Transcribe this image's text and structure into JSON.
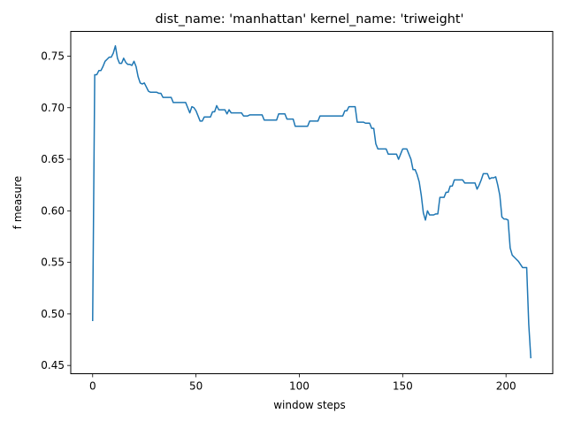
{
  "chart_data": {
    "type": "line",
    "title": "dist_name: 'manhattan' kernel_name: 'triweight'",
    "xlabel": "window steps",
    "ylabel": "f measure",
    "xlim": [
      -10.6,
      222.6
    ],
    "ylim": [
      0.442,
      0.774
    ],
    "x_ticks": [
      0,
      50,
      100,
      150,
      200
    ],
    "y_ticks": [
      0.45,
      0.5,
      0.55,
      0.6,
      0.65,
      0.7,
      0.75
    ],
    "grid": false,
    "legend": "none",
    "line_color": "#1f77b4",
    "series": [
      {
        "points": [
          [
            0,
            0.493
          ],
          [
            1,
            0.732
          ],
          [
            2,
            0.732
          ],
          [
            3,
            0.736
          ],
          [
            4,
            0.736
          ],
          [
            5,
            0.74
          ],
          [
            6,
            0.745
          ],
          [
            7,
            0.747
          ],
          [
            8,
            0.749
          ],
          [
            9,
            0.749
          ],
          [
            10,
            0.753
          ],
          [
            11,
            0.76
          ],
          [
            12,
            0.748
          ],
          [
            13,
            0.743
          ],
          [
            14,
            0.743
          ],
          [
            15,
            0.748
          ],
          [
            16,
            0.744
          ],
          [
            17,
            0.742
          ],
          [
            18,
            0.742
          ],
          [
            19,
            0.741
          ],
          [
            20,
            0.745
          ],
          [
            21,
            0.74
          ],
          [
            22,
            0.73
          ],
          [
            23,
            0.724
          ],
          [
            24,
            0.723
          ],
          [
            25,
            0.724
          ],
          [
            26,
            0.72
          ],
          [
            27,
            0.716
          ],
          [
            28,
            0.715
          ],
          [
            29,
            0.715
          ],
          [
            30,
            0.715
          ],
          [
            31,
            0.715
          ],
          [
            32,
            0.714
          ],
          [
            33,
            0.714
          ],
          [
            34,
            0.71
          ],
          [
            35,
            0.71
          ],
          [
            36,
            0.71
          ],
          [
            37,
            0.71
          ],
          [
            38,
            0.71
          ],
          [
            39,
            0.705
          ],
          [
            40,
            0.705
          ],
          [
            41,
            0.705
          ],
          [
            42,
            0.705
          ],
          [
            43,
            0.705
          ],
          [
            44,
            0.705
          ],
          [
            45,
            0.705
          ],
          [
            46,
            0.7
          ],
          [
            47,
            0.695
          ],
          [
            48,
            0.701
          ],
          [
            49,
            0.7
          ],
          [
            50,
            0.697
          ],
          [
            51,
            0.692
          ],
          [
            52,
            0.687
          ],
          [
            53,
            0.687
          ],
          [
            54,
            0.691
          ],
          [
            55,
            0.691
          ],
          [
            56,
            0.691
          ],
          [
            57,
            0.691
          ],
          [
            58,
            0.696
          ],
          [
            59,
            0.696
          ],
          [
            60,
            0.702
          ],
          [
            61,
            0.698
          ],
          [
            62,
            0.698
          ],
          [
            63,
            0.698
          ],
          [
            64,
            0.698
          ],
          [
            65,
            0.694
          ],
          [
            66,
            0.698
          ],
          [
            67,
            0.695
          ],
          [
            68,
            0.695
          ],
          [
            69,
            0.695
          ],
          [
            70,
            0.695
          ],
          [
            71,
            0.695
          ],
          [
            72,
            0.695
          ],
          [
            73,
            0.692
          ],
          [
            74,
            0.692
          ],
          [
            75,
            0.692
          ],
          [
            76,
            0.693
          ],
          [
            77,
            0.693
          ],
          [
            78,
            0.693
          ],
          [
            79,
            0.693
          ],
          [
            80,
            0.693
          ],
          [
            81,
            0.693
          ],
          [
            82,
            0.693
          ],
          [
            83,
            0.688
          ],
          [
            84,
            0.688
          ],
          [
            85,
            0.688
          ],
          [
            86,
            0.688
          ],
          [
            87,
            0.688
          ],
          [
            88,
            0.688
          ],
          [
            89,
            0.688
          ],
          [
            90,
            0.694
          ],
          [
            91,
            0.694
          ],
          [
            92,
            0.694
          ],
          [
            93,
            0.694
          ],
          [
            94,
            0.689
          ],
          [
            95,
            0.689
          ],
          [
            96,
            0.689
          ],
          [
            97,
            0.689
          ],
          [
            98,
            0.682
          ],
          [
            99,
            0.682
          ],
          [
            100,
            0.682
          ],
          [
            101,
            0.682
          ],
          [
            102,
            0.682
          ],
          [
            103,
            0.682
          ],
          [
            104,
            0.682
          ],
          [
            105,
            0.687
          ],
          [
            106,
            0.687
          ],
          [
            107,
            0.687
          ],
          [
            108,
            0.687
          ],
          [
            109,
            0.687
          ],
          [
            110,
            0.692
          ],
          [
            111,
            0.692
          ],
          [
            112,
            0.692
          ],
          [
            113,
            0.692
          ],
          [
            114,
            0.692
          ],
          [
            115,
            0.692
          ],
          [
            116,
            0.692
          ],
          [
            117,
            0.692
          ],
          [
            118,
            0.692
          ],
          [
            119,
            0.692
          ],
          [
            120,
            0.692
          ],
          [
            121,
            0.692
          ],
          [
            122,
            0.697
          ],
          [
            123,
            0.697
          ],
          [
            124,
            0.701
          ],
          [
            125,
            0.701
          ],
          [
            126,
            0.701
          ],
          [
            127,
            0.701
          ],
          [
            128,
            0.686
          ],
          [
            129,
            0.686
          ],
          [
            130,
            0.686
          ],
          [
            131,
            0.686
          ],
          [
            132,
            0.685
          ],
          [
            133,
            0.685
          ],
          [
            134,
            0.685
          ],
          [
            135,
            0.68
          ],
          [
            136,
            0.68
          ],
          [
            137,
            0.665
          ],
          [
            138,
            0.66
          ],
          [
            139,
            0.66
          ],
          [
            140,
            0.66
          ],
          [
            141,
            0.66
          ],
          [
            142,
            0.66
          ],
          [
            143,
            0.655
          ],
          [
            144,
            0.655
          ],
          [
            145,
            0.655
          ],
          [
            146,
            0.655
          ],
          [
            147,
            0.655
          ],
          [
            148,
            0.65
          ],
          [
            149,
            0.655
          ],
          [
            150,
            0.66
          ],
          [
            151,
            0.66
          ],
          [
            152,
            0.66
          ],
          [
            153,
            0.655
          ],
          [
            154,
            0.65
          ],
          [
            155,
            0.64
          ],
          [
            156,
            0.64
          ],
          [
            157,
            0.635
          ],
          [
            158,
            0.628
          ],
          [
            159,
            0.615
          ],
          [
            160,
            0.598
          ],
          [
            161,
            0.591
          ],
          [
            162,
            0.6
          ],
          [
            163,
            0.596
          ],
          [
            164,
            0.596
          ],
          [
            165,
            0.596
          ],
          [
            166,
            0.597
          ],
          [
            167,
            0.597
          ],
          [
            168,
            0.613
          ],
          [
            169,
            0.613
          ],
          [
            170,
            0.613
          ],
          [
            171,
            0.618
          ],
          [
            172,
            0.618
          ],
          [
            173,
            0.624
          ],
          [
            174,
            0.624
          ],
          [
            175,
            0.63
          ],
          [
            176,
            0.63
          ],
          [
            177,
            0.63
          ],
          [
            178,
            0.63
          ],
          [
            179,
            0.63
          ],
          [
            180,
            0.627
          ],
          [
            181,
            0.627
          ],
          [
            182,
            0.627
          ],
          [
            183,
            0.627
          ],
          [
            184,
            0.627
          ],
          [
            185,
            0.627
          ],
          [
            186,
            0.621
          ],
          [
            187,
            0.625
          ],
          [
            188,
            0.63
          ],
          [
            189,
            0.636
          ],
          [
            190,
            0.636
          ],
          [
            191,
            0.636
          ],
          [
            192,
            0.631
          ],
          [
            193,
            0.632
          ],
          [
            194,
            0.632
          ],
          [
            195,
            0.633
          ],
          [
            196,
            0.625
          ],
          [
            197,
            0.615
          ],
          [
            198,
            0.594
          ],
          [
            199,
            0.592
          ],
          [
            200,
            0.592
          ],
          [
            201,
            0.591
          ],
          [
            202,
            0.564
          ],
          [
            203,
            0.557
          ],
          [
            204,
            0.555
          ],
          [
            205,
            0.553
          ],
          [
            206,
            0.551
          ],
          [
            207,
            0.548
          ],
          [
            208,
            0.545
          ],
          [
            209,
            0.545
          ],
          [
            210,
            0.545
          ],
          [
            211,
            0.49
          ],
          [
            212,
            0.457
          ]
        ]
      }
    ]
  }
}
